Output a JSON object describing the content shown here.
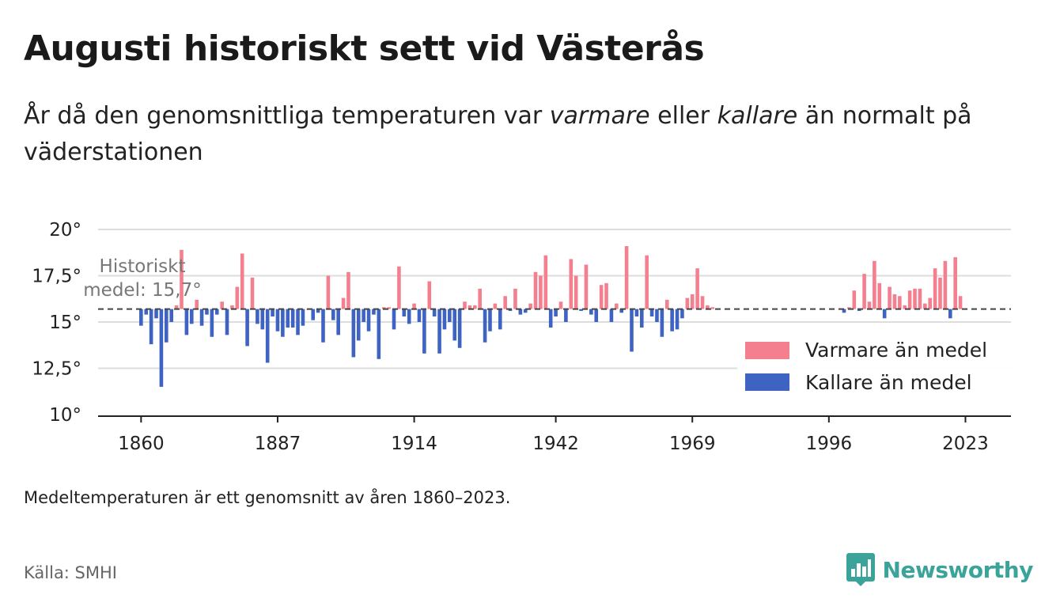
{
  "title": "Augusti historiskt sett vid Västerås",
  "subtitle": {
    "part1": "År då den genomsnittliga temperaturen var ",
    "warm_word": "varmare",
    "part2": " eller ",
    "cold_word": "kallare",
    "part3": " än normalt på väderstationen"
  },
  "note": "Medeltemperaturen är ett genomsnitt av åren 1860–2023.",
  "source": "Källa: SMHI",
  "brand": "Newsworthy",
  "colors": {
    "warm": "#f4808f",
    "cold": "#3f63c2",
    "brand": "#3aa39a"
  },
  "chart_data": {
    "type": "bar",
    "baseline": 15.7,
    "mean_label_line1": "Historiskt",
    "mean_label_line2": "medel: 15,7°",
    "ylim": [
      10,
      20
    ],
    "yticks": [
      {
        "value": 10,
        "label": "10°"
      },
      {
        "value": 12.5,
        "label": "12,5°"
      },
      {
        "value": 15,
        "label": "15°"
      },
      {
        "value": 17.5,
        "label": "17,5°"
      },
      {
        "value": 20,
        "label": "20°"
      }
    ],
    "xlim": [
      1851.5,
      2032
    ],
    "xticks": [
      {
        "value": 1860,
        "label": "1860"
      },
      {
        "value": 1887,
        "label": "1887"
      },
      {
        "value": 1914,
        "label": "1914"
      },
      {
        "value": 1942,
        "label": "1942"
      },
      {
        "value": 1969,
        "label": "1969"
      },
      {
        "value": 1996,
        "label": "1996"
      },
      {
        "value": 2023,
        "label": "2023"
      }
    ],
    "legend": [
      {
        "name": "Varmare än medel",
        "color": "#f4808f"
      },
      {
        "name": "Kallare än medel",
        "color": "#3f63c2"
      }
    ],
    "legend_position": "right",
    "grid": true,
    "data": [
      [
        1860,
        14.8
      ],
      [
        1861,
        15.4
      ],
      [
        1862,
        13.8
      ],
      [
        1863,
        15.2
      ],
      [
        1864,
        11.5
      ],
      [
        1865,
        13.9
      ],
      [
        1866,
        15.0
      ],
      [
        1867,
        15.9
      ],
      [
        1868,
        18.9
      ],
      [
        1869,
        14.3
      ],
      [
        1870,
        14.9
      ],
      [
        1871,
        16.2
      ],
      [
        1872,
        14.8
      ],
      [
        1873,
        15.4
      ],
      [
        1874,
        14.2
      ],
      [
        1875,
        15.4
      ],
      [
        1876,
        16.1
      ],
      [
        1877,
        14.3
      ],
      [
        1878,
        15.9
      ],
      [
        1879,
        16.9
      ],
      [
        1880,
        18.7
      ],
      [
        1881,
        13.7
      ],
      [
        1882,
        17.4
      ],
      [
        1883,
        14.9
      ],
      [
        1884,
        14.6
      ],
      [
        1885,
        12.8
      ],
      [
        1886,
        15.3
      ],
      [
        1887,
        14.5
      ],
      [
        1888,
        14.2
      ],
      [
        1889,
        14.7
      ],
      [
        1890,
        14.7
      ],
      [
        1891,
        14.3
      ],
      [
        1892,
        14.8
      ],
      [
        1893,
        15.7
      ],
      [
        1894,
        15.1
      ],
      [
        1895,
        15.5
      ],
      [
        1896,
        13.9
      ],
      [
        1897,
        17.5
      ],
      [
        1898,
        15.1
      ],
      [
        1899,
        14.3
      ],
      [
        1900,
        16.3
      ],
      [
        1901,
        17.7
      ],
      [
        1902,
        13.1
      ],
      [
        1903,
        14.0
      ],
      [
        1904,
        15.0
      ],
      [
        1905,
        14.5
      ],
      [
        1906,
        15.4
      ],
      [
        1907,
        13.0
      ],
      [
        1908,
        15.8
      ],
      [
        1909,
        15.8
      ],
      [
        1910,
        14.6
      ],
      [
        1911,
        18.0
      ],
      [
        1912,
        15.3
      ],
      [
        1913,
        14.9
      ],
      [
        1914,
        16.0
      ],
      [
        1915,
        15.0
      ],
      [
        1916,
        13.3
      ],
      [
        1917,
        17.2
      ],
      [
        1918,
        15.3
      ],
      [
        1919,
        13.3
      ],
      [
        1920,
        14.6
      ],
      [
        1921,
        15.0
      ],
      [
        1922,
        14.0
      ],
      [
        1923,
        13.6
      ],
      [
        1924,
        16.1
      ],
      [
        1925,
        15.9
      ],
      [
        1926,
        15.9
      ],
      [
        1927,
        16.8
      ],
      [
        1928,
        13.9
      ],
      [
        1929,
        14.5
      ],
      [
        1930,
        16.0
      ],
      [
        1931,
        14.6
      ],
      [
        1932,
        16.4
      ],
      [
        1933,
        15.6
      ],
      [
        1934,
        16.8
      ],
      [
        1935,
        15.4
      ],
      [
        1936,
        15.5
      ],
      [
        1937,
        16.0
      ],
      [
        1938,
        17.7
      ],
      [
        1939,
        17.5
      ],
      [
        1940,
        18.6
      ],
      [
        1941,
        14.7
      ],
      [
        1942,
        15.3
      ],
      [
        1943,
        16.1
      ],
      [
        1944,
        15.0
      ],
      [
        1945,
        18.4
      ],
      [
        1946,
        17.5
      ],
      [
        1947,
        15.6
      ],
      [
        1948,
        18.1
      ],
      [
        1949,
        15.4
      ],
      [
        1950,
        15.0
      ],
      [
        1951,
        17.0
      ],
      [
        1952,
        17.1
      ],
      [
        1953,
        15.0
      ],
      [
        1954,
        16.0
      ],
      [
        1955,
        15.5
      ],
      [
        1956,
        19.1
      ],
      [
        1957,
        13.4
      ],
      [
        1958,
        15.3
      ],
      [
        1959,
        14.7
      ],
      [
        1960,
        18.6
      ],
      [
        1961,
        15.3
      ],
      [
        1962,
        15.0
      ],
      [
        1963,
        14.2
      ],
      [
        1964,
        16.2
      ],
      [
        1965,
        14.5
      ],
      [
        1966,
        14.6
      ],
      [
        1967,
        15.2
      ],
      [
        1968,
        16.3
      ],
      [
        1969,
        16.5
      ],
      [
        1970,
        17.9
      ],
      [
        1971,
        16.4
      ],
      [
        1972,
        15.9
      ],
      [
        1973,
        15.8
      ],
      [
        1999,
        15.5
      ],
      [
        2000,
        15.8
      ],
      [
        2001,
        16.7
      ],
      [
        2002,
        15.6
      ],
      [
        2003,
        17.6
      ],
      [
        2004,
        16.1
      ],
      [
        2005,
        18.3
      ],
      [
        2006,
        17.1
      ],
      [
        2007,
        15.2
      ],
      [
        2008,
        16.9
      ],
      [
        2009,
        16.5
      ],
      [
        2010,
        16.4
      ],
      [
        2011,
        15.9
      ],
      [
        2012,
        16.7
      ],
      [
        2013,
        16.8
      ],
      [
        2014,
        16.8
      ],
      [
        2015,
        16.0
      ],
      [
        2016,
        16.3
      ],
      [
        2017,
        17.9
      ],
      [
        2018,
        17.4
      ],
      [
        2019,
        18.3
      ],
      [
        2020,
        15.2
      ],
      [
        2021,
        18.5
      ],
      [
        2022,
        16.4
      ]
    ]
  }
}
